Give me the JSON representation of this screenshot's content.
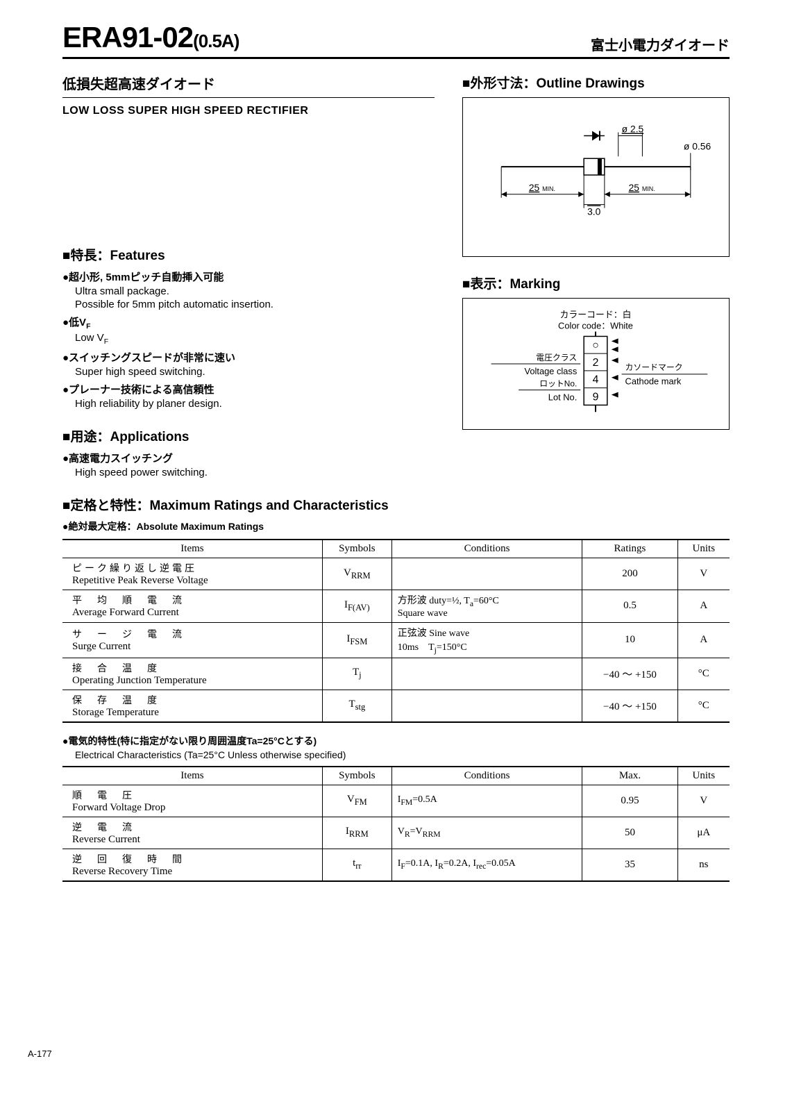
{
  "header": {
    "part_main": "ERA91-02",
    "part_sub": "(0.5A)",
    "right_jp": "富士小電力ダイオード"
  },
  "desc": {
    "title_jp": "低損失超高速ダイオード",
    "title_en": "LOW LOSS SUPER HIGH SPEED RECTIFIER"
  },
  "outline": {
    "heading": "■外形寸法：Outline Drawings",
    "dims": {
      "d_body": "ø 2.5",
      "d_lead": "ø 0.56",
      "lead_len": "25",
      "lead_min": "MIN.",
      "body_len": "3.0"
    }
  },
  "features": {
    "heading": "■特長：Features",
    "items": [
      {
        "jp": "●超小形, 5mmピッチ自動挿入可能",
        "en1": "Ultra small package.",
        "en2": "Possible for 5mm pitch automatic insertion."
      },
      {
        "jp": "●低V",
        "jp_sub": "F",
        "en1": "Low V",
        "en1_sub": "F"
      },
      {
        "jp": "●スイッチングスピードが非常に速い",
        "en1": "Super high speed switching."
      },
      {
        "jp": "●プレーナー技術による高信頼性",
        "en1": "High reliability by planer design."
      }
    ]
  },
  "marking": {
    "heading": "■表示：Marking",
    "color_jp": "カラーコード：白",
    "color_en": "Color code：White",
    "volt_jp": "電圧クラス",
    "volt_en": "Voltage class",
    "lot_jp": "ロットNo.",
    "lot_en": "Lot No.",
    "cathode_jp": "カソードマーク",
    "cathode_en": "Cathode mark",
    "body_chars": [
      "○",
      "2",
      "4",
      "9"
    ]
  },
  "applications": {
    "heading": "■用途：Applications",
    "item_jp": "●高速電力スイッチング",
    "item_en": "High speed power switching."
  },
  "ratings": {
    "heading": "■定格と特性：Maximum Ratings and Characteristics",
    "sub_jp": "●絶対最大定格：Absolute Maximum Ratings",
    "columns": [
      "Items",
      "Symbols",
      "Conditions",
      "Ratings",
      "Units"
    ],
    "rows": [
      {
        "jp": "ピーク繰り返し逆電圧",
        "en": "Repetitive Peak Reverse Voltage",
        "sym_html": "V<sub>RRM</sub>",
        "cond_html": "",
        "rating": "200",
        "unit": "V"
      },
      {
        "jp": "平　均　順　電　流",
        "en": "Average Forward Current",
        "sym_html": "I<sub>F(AV)</sub>",
        "cond_html": "方形波 duty=½, T<sub>a</sub>=60°C<br>Square wave",
        "rating": "0.5",
        "unit": "A"
      },
      {
        "jp": "サ　ー　ジ　電　流",
        "en": "Surge Current",
        "sym_html": "I<sub>FSM</sub>",
        "cond_html": "正弦波 Sine wave<br>10ms　T<sub>j</sub>=150°C",
        "rating": "10",
        "unit": "A"
      },
      {
        "jp": "接　合　温　度",
        "en": "Operating Junction Temperature",
        "sym_html": "T<sub>j</sub>",
        "cond_html": "",
        "rating": "−40 〜 +150",
        "unit": "°C"
      },
      {
        "jp": "保　存　温　度",
        "en": "Storage Temperature",
        "sym_html": "T<sub>stg</sub>",
        "cond_html": "",
        "rating": "−40 〜 +150",
        "unit": "°C"
      }
    ]
  },
  "electrical": {
    "sub_jp": "●電気的特性(特に指定がない限り周囲温度Ta=25°Cとする)",
    "sub_en": "Electrical Characteristics (Ta=25°C Unless otherwise specified)",
    "columns": [
      "Items",
      "Symbols",
      "Conditions",
      "Max.",
      "Units"
    ],
    "rows": [
      {
        "jp": "順　電　圧",
        "en": "Forward Voltage Drop",
        "sym_html": "V<sub>FM</sub>",
        "cond_html": "I<sub>FM</sub>=0.5A",
        "rating": "0.95",
        "unit": "V"
      },
      {
        "jp": "逆　電　流",
        "en": "Reverse Current",
        "sym_html": "I<sub>RRM</sub>",
        "cond_html": "V<sub>R</sub>=V<sub>RRM</sub>",
        "rating": "50",
        "unit": "μA"
      },
      {
        "jp": "逆　回　復　時　間",
        "en": "Reverse Recovery Time",
        "sym_html": "t<sub>rr</sub>",
        "cond_html": "I<sub>F</sub>=0.1A, I<sub>R</sub>=0.2A, I<sub>rec</sub>=0.05A",
        "rating": "35",
        "unit": "ns"
      }
    ]
  },
  "pagenum": "A-177"
}
